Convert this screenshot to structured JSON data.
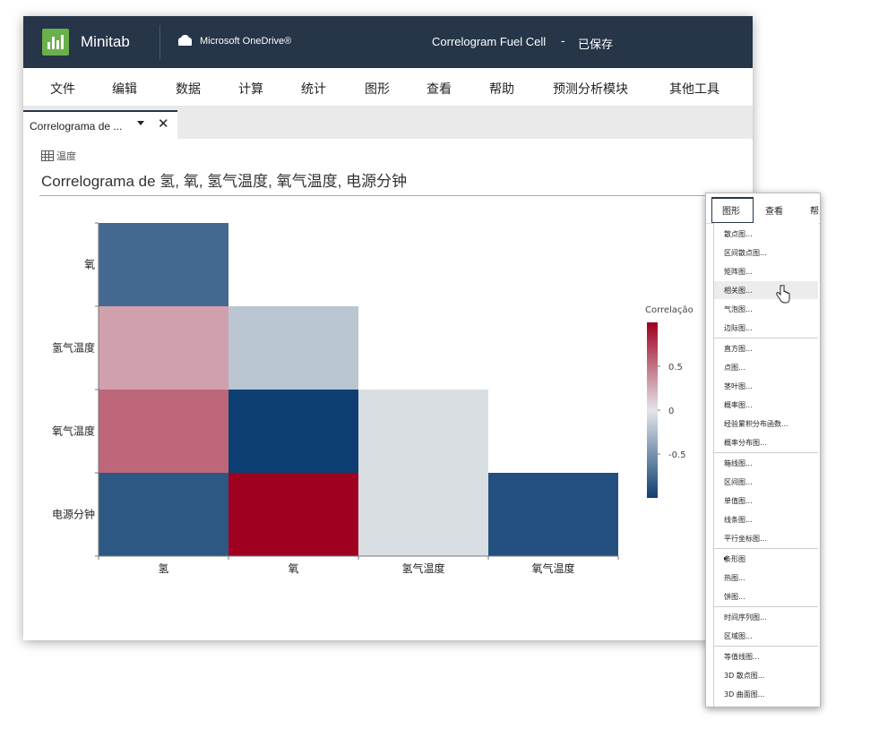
{
  "app": {
    "name": "Minitab",
    "storage": "Microsoft OneDrive®",
    "document_title": "Correlogram Fuel Cell",
    "separator": "-",
    "save_status": "已保存"
  },
  "menu": [
    "文件",
    "编辑",
    "数据",
    "计算",
    "统计",
    "图形",
    "查看",
    "帮助",
    "预测分析模块",
    "其他工具"
  ],
  "tab": {
    "label": "Correlograma de ..."
  },
  "output": {
    "worksheet": "温度",
    "title": "Correlograma de 氢, 氧, 氢气温度, 氧气温度, 电源分钟"
  },
  "chart_data": {
    "type": "heatmap",
    "rows": [
      "氧",
      "氢气温度",
      "氧气温度",
      "电源分钟"
    ],
    "columns": [
      "氢",
      "氧",
      "氢气温度",
      "氧气温度"
    ],
    "values": [
      [
        -0.75,
        null,
        null,
        null
      ],
      [
        0.3,
        -0.2,
        null,
        null
      ],
      [
        0.55,
        -1.0,
        -0.05,
        null
      ],
      [
        -0.85,
        1.0,
        -0.05,
        -0.9
      ]
    ],
    "legend_title": "Correlação",
    "legend_ticks": [
      "0.5",
      "0",
      "-0.5"
    ],
    "legend_range": [
      -1,
      1
    ],
    "colors": {
      "negative": "#0d3f72",
      "neutral": "#e4e6e9",
      "positive": "#a0001f"
    }
  },
  "popup_menu": {
    "bar": [
      "图形",
      "查看",
      "帮"
    ],
    "groups": [
      [
        "散点图...",
        "区间散点图...",
        "矩阵图...",
        "相关图...",
        "气泡图...",
        "边际图..."
      ],
      [
        "直方图...",
        "点图...",
        "茎叶图...",
        "概率图...",
        "经验累积分布函数...",
        "概率分布图..."
      ],
      [
        "箱线图...",
        "区间图...",
        "单值图...",
        "线条图...",
        "平行坐标图..."
      ],
      [
        "条形图",
        "热图...",
        "饼图..."
      ],
      [
        "时间序列图...",
        "区域图..."
      ],
      [
        "等值线图...",
        "3D 散点图...",
        "3D 曲面图..."
      ]
    ],
    "hovered": "相关图..."
  }
}
